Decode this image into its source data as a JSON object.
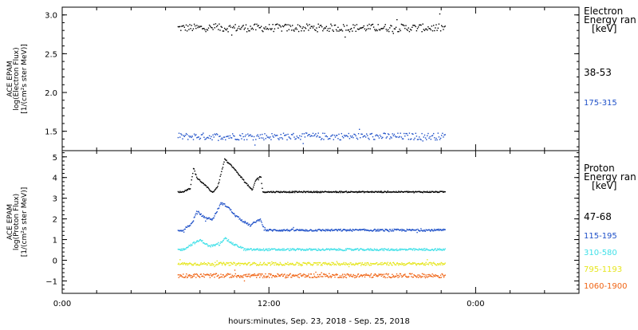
{
  "x_axis": {
    "ticks": [
      "0:00",
      "12:00",
      "0:00"
    ],
    "label": "hours:minutes, Sep. 23, 2018 - Sep. 25, 2018",
    "range_hours": [
      0,
      30
    ],
    "tick_hours": [
      0,
      12,
      24
    ],
    "minor_step_hours": 2
  },
  "chart_data": [
    {
      "type": "scatter",
      "panel": "electron",
      "ylabel": [
        "ACE EPAM",
        "log(Electron Flux)",
        "[1/(cm²s ster MeV)]"
      ],
      "ylim": [
        1.25,
        3.1
      ],
      "yticks": [
        "1.5",
        "2.0",
        "2.5",
        "3.0"
      ],
      "ytick_values": [
        1.5,
        2.0,
        2.5,
        3.0
      ],
      "legend_title": [
        "Electron",
        "Energy ran",
        "[keV]"
      ],
      "series": [
        {
          "name": "38-53",
          "color": "#000000",
          "x_range": [
            6.7,
            22.2
          ],
          "n": 300,
          "level": 2.84,
          "noise": 0.05
        },
        {
          "name": "175-315",
          "color": "#1e50c8",
          "x_range": [
            6.7,
            22.2
          ],
          "n": 300,
          "level": 1.44,
          "noise": 0.045
        }
      ]
    },
    {
      "type": "scatter",
      "panel": "proton",
      "ylabel": [
        "ACE EPAM",
        "log(Proton Flux)",
        "[1/(cm²s ster MeV)]"
      ],
      "ylim": [
        -1.6,
        5.3
      ],
      "yticks": [
        "−1",
        "0",
        "1",
        "2",
        "3",
        "4",
        "5"
      ],
      "ytick_values": [
        -1,
        0,
        1,
        2,
        3,
        4,
        5
      ],
      "legend_title": [
        "Proton",
        "Energy ran",
        "[keV]"
      ],
      "series": [
        {
          "name": "47-68",
          "color": "#000000",
          "x_range": [
            6.7,
            22.2
          ],
          "n": 420,
          "level": 3.33,
          "noise": 0.03,
          "spikes": [
            [
              7.0,
              3.35
            ],
            [
              7.4,
              3.5
            ],
            [
              7.6,
              4.5
            ],
            [
              7.8,
              4.0
            ],
            [
              8.2,
              3.7
            ],
            [
              8.7,
              3.3
            ],
            [
              9.0,
              3.6
            ],
            [
              9.4,
              4.9
            ],
            [
              9.8,
              4.6
            ],
            [
              10.3,
              4.1
            ],
            [
              10.7,
              3.7
            ],
            [
              11.0,
              3.4
            ],
            [
              11.2,
              3.9
            ],
            [
              11.5,
              4.1
            ],
            [
              11.6,
              3.35
            ]
          ]
        },
        {
          "name": "115-195",
          "color": "#1e50c8",
          "x_range": [
            6.7,
            22.2
          ],
          "n": 420,
          "level": 1.48,
          "noise": 0.05,
          "spikes": [
            [
              7.0,
              1.5
            ],
            [
              7.5,
              1.8
            ],
            [
              7.8,
              2.4
            ],
            [
              8.2,
              2.1
            ],
            [
              8.7,
              2.0
            ],
            [
              9.2,
              2.8
            ],
            [
              9.6,
              2.6
            ],
            [
              10.0,
              2.2
            ],
            [
              10.5,
              1.9
            ],
            [
              10.9,
              1.7
            ],
            [
              11.2,
              1.9
            ],
            [
              11.5,
              2.0
            ],
            [
              11.7,
              1.5
            ]
          ]
        },
        {
          "name": "310-580",
          "color": "#40e0e8",
          "x_range": [
            6.7,
            22.2
          ],
          "n": 420,
          "level": 0.54,
          "noise": 0.05,
          "spikes": [
            [
              7.0,
              0.55
            ],
            [
              7.6,
              0.85
            ],
            [
              8.0,
              1.0
            ],
            [
              8.5,
              0.7
            ],
            [
              9.1,
              0.8
            ],
            [
              9.4,
              1.1
            ],
            [
              9.9,
              0.8
            ],
            [
              10.5,
              0.6
            ]
          ]
        },
        {
          "name": "795-1193",
          "color": "#e6e61e",
          "x_range": [
            6.7,
            22.2
          ],
          "n": 420,
          "level": -0.15,
          "noise": 0.07
        },
        {
          "name": "1060-1900",
          "color": "#f06414",
          "x_range": [
            6.7,
            22.2
          ],
          "n": 420,
          "level": -0.72,
          "noise": 0.1
        }
      ]
    }
  ]
}
